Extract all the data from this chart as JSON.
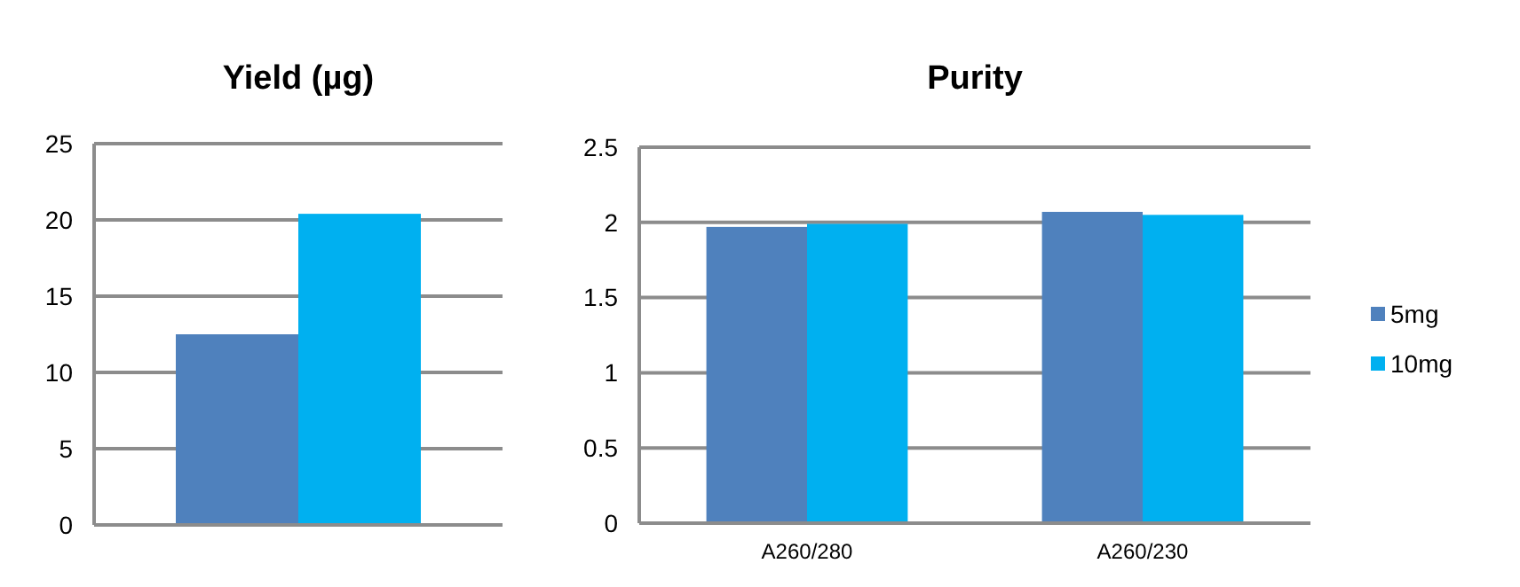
{
  "chart_data": [
    {
      "type": "bar",
      "title": "Yield (µg)",
      "categories": [
        null
      ],
      "series": [
        {
          "color": "#4f81bd",
          "values": [
            12.5
          ]
        },
        {
          "color": "#00b0f0",
          "values": [
            20.4
          ]
        }
      ],
      "ylim": [
        0,
        25
      ],
      "yticks": [
        0,
        5,
        10,
        15,
        20,
        25
      ],
      "grid": "y"
    },
    {
      "type": "bar",
      "title": "Purity",
      "categories": [
        "A260/280",
        "A260/230"
      ],
      "series": [
        {
          "name": "5mg",
          "color": "#4f81bd",
          "values": [
            1.97,
            2.07
          ]
        },
        {
          "name": "10mg",
          "color": "#00b0f0",
          "values": [
            1.99,
            2.05
          ]
        }
      ],
      "ylim": [
        0,
        2.5
      ],
      "yticks": [
        0,
        0.5,
        1,
        1.5,
        2,
        2.5
      ],
      "grid": "y",
      "legend": "right"
    }
  ]
}
